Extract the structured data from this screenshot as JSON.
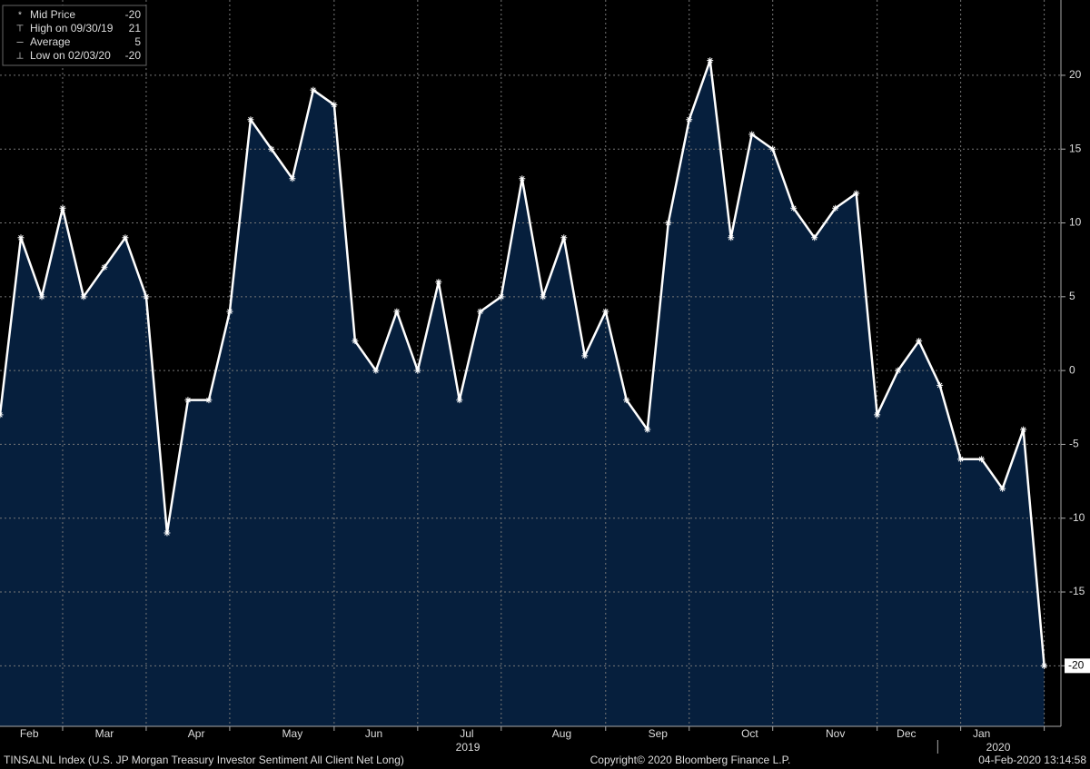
{
  "chart_data": {
    "type": "area",
    "values": [
      -3,
      9,
      5,
      11,
      5,
      7,
      9,
      5,
      -11,
      -2,
      -2,
      4,
      17,
      15,
      13,
      19,
      18,
      2,
      0,
      4,
      0,
      6,
      -2,
      4,
      5,
      13,
      5,
      9,
      1,
      4,
      -2,
      -4,
      10,
      17,
      21,
      9,
      16,
      15,
      11,
      9,
      11,
      12,
      -3,
      0,
      2,
      -1,
      -6,
      -6,
      -8,
      -4,
      -20
    ],
    "color": "#061f3d",
    "line_color": "#ffffff",
    "xlim": [
      0,
      50.8
    ],
    "xticks": [
      {
        "value": 1.4,
        "label": "Feb"
      },
      {
        "value": 5,
        "label": "Mar"
      },
      {
        "value": 9.4,
        "label": "Apr"
      },
      {
        "value": 14,
        "label": "May"
      },
      {
        "value": 17.9,
        "label": "Jun"
      },
      {
        "value": 22.35,
        "label": "Jul"
      },
      {
        "value": 26.9,
        "label": "Aug"
      },
      {
        "value": 31.5,
        "label": "Sep"
      },
      {
        "value": 35.9,
        "label": "Oct"
      },
      {
        "value": 40,
        "label": "Nov"
      },
      {
        "value": 43.4,
        "label": "Dec"
      },
      {
        "value": 47,
        "label": "Jan"
      }
    ],
    "xgrid": [
      3,
      7,
      11,
      16,
      20,
      24,
      29,
      33,
      37,
      42,
      46,
      50
    ],
    "year_labels": [
      {
        "value": 22.4,
        "label": "2019"
      },
      {
        "value": 47.8,
        "label": "2020"
      }
    ],
    "year_separator": 44.9,
    "ylim": [
      -24.1,
      25.1
    ],
    "yticks": [
      -20,
      -15,
      -10,
      -5,
      0,
      5,
      10,
      15,
      20
    ],
    "grid": true,
    "legend": [
      {
        "label": "Mid Price",
        "value": -20
      },
      {
        "label": "High on 09/30/19",
        "value": 21
      },
      {
        "label": "Average",
        "value": 5
      },
      {
        "label": "Low on 02/03/20",
        "value": -20
      }
    ],
    "footer_left": "TINSALNL Index (U.S. JP Morgan Treasury Investor Sentiment All Client Net Long)",
    "footer_center": "Copyright© 2020 Bloomberg Finance L.P.",
    "footer_right": "04-Feb-2020 13:14:58"
  }
}
